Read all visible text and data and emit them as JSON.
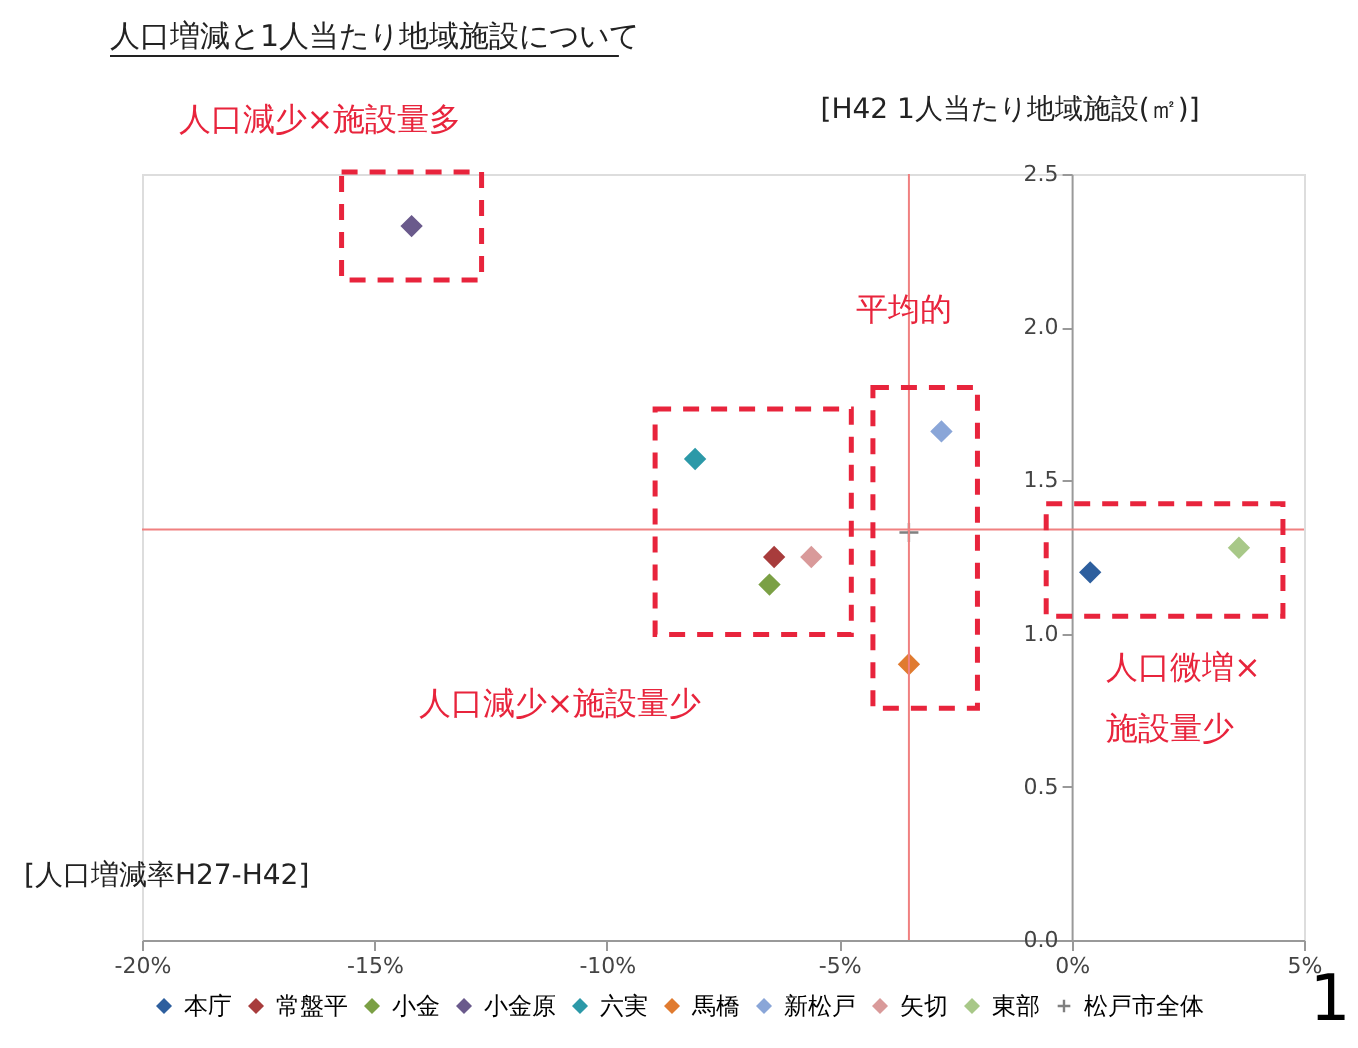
{
  "chart_data": {
    "type": "scatter",
    "title": "人口増減と1人当たり地域施設について",
    "xlabel": "[人口増減率H27-H42]",
    "ylabel": "[H42 1人当たり地域施設(㎡)]",
    "series": [
      {
        "name": "本庁",
        "color": "#2e5f9e",
        "x": [
          0.4
        ],
        "values": [
          1.2
        ],
        "marker": "diamond"
      },
      {
        "name": "常盤平",
        "color": "#a83c3c",
        "x": [
          -6.4
        ],
        "values": [
          1.25
        ],
        "marker": "diamond"
      },
      {
        "name": "小金",
        "color": "#7ba045",
        "x": [
          -6.5
        ],
        "values": [
          1.16
        ],
        "marker": "diamond"
      },
      {
        "name": "小金原",
        "color": "#6a5a8c",
        "x": [
          -14.2
        ],
        "values": [
          2.33
        ],
        "marker": "diamond"
      },
      {
        "name": "六実",
        "color": "#2c99a8",
        "x": [
          -8.1
        ],
        "values": [
          1.57
        ],
        "marker": "diamond"
      },
      {
        "name": "馬橋",
        "color": "#e07b30",
        "x": [
          -3.5
        ],
        "values": [
          0.9
        ],
        "marker": "diamond"
      },
      {
        "name": "新松戸",
        "color": "#8aa6d8",
        "x": [
          -2.8
        ],
        "values": [
          1.66
        ],
        "marker": "diamond"
      },
      {
        "name": "矢切",
        "color": "#d99a9a",
        "x": [
          -5.6
        ],
        "values": [
          1.25
        ],
        "marker": "diamond"
      },
      {
        "name": "東部",
        "color": "#a8c888",
        "x": [
          3.6
        ],
        "values": [
          1.28
        ],
        "marker": "diamond"
      },
      {
        "name": "松戸市全体",
        "color": "#808080",
        "x": [
          -3.5
        ],
        "values": [
          1.33
        ],
        "marker": "cross"
      }
    ],
    "xlim": [
      -20,
      5
    ],
    "xticks": [
      {
        "value": -20,
        "label": "-20%"
      },
      {
        "value": -15,
        "label": "-15%"
      },
      {
        "value": -10,
        "label": "-10%"
      },
      {
        "value": -5,
        "label": "-5%"
      },
      {
        "value": 0,
        "label": "0%"
      },
      {
        "value": 5,
        "label": "5%"
      }
    ],
    "ylim": [
      0,
      2.5
    ],
    "yticks": [
      {
        "value": 0,
        "label": "0.0"
      },
      {
        "value": 0.5,
        "label": "0.5"
      },
      {
        "value": 1,
        "label": "1.0"
      },
      {
        "value": 1.5,
        "label": "1.5"
      },
      {
        "value": 2,
        "label": "2.0"
      },
      {
        "value": 2.5,
        "label": "2.5"
      }
    ],
    "ref_lines": [
      {
        "axis": "x",
        "value": -3.5,
        "color": "#f08080"
      },
      {
        "axis": "y",
        "value": 1.34,
        "color": "#f08080"
      }
    ],
    "annotations": [
      "人口減少×施設量多",
      "平均的",
      "人口減少×施設量少",
      "人口微増×\n施設量少",
      "1"
    ],
    "grid": false,
    "legend": "bottom"
  }
}
